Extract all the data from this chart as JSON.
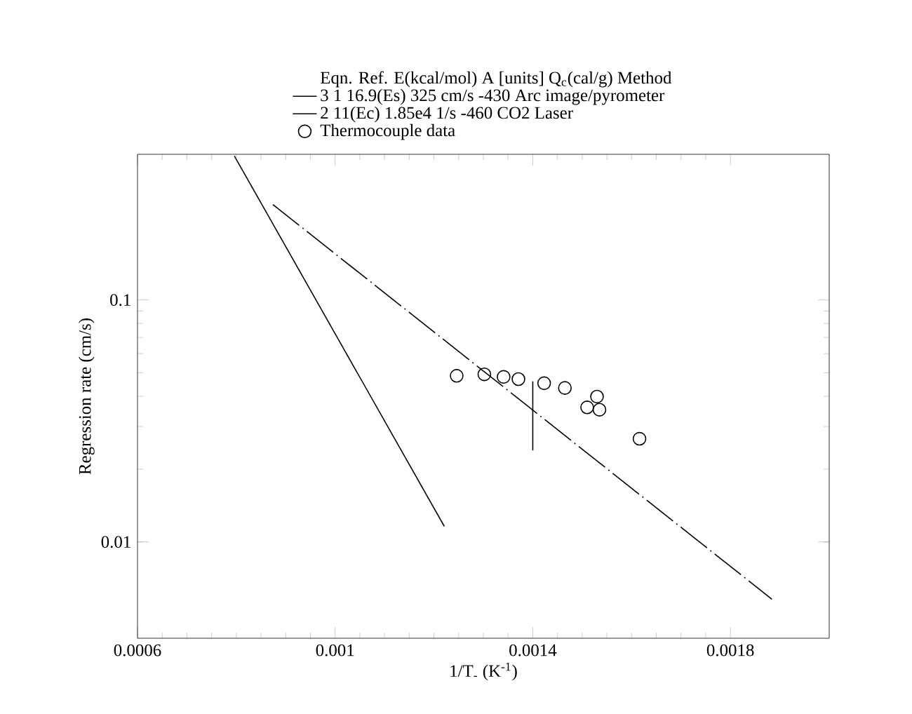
{
  "chart_data": {
    "type": "line",
    "xlabel": "1/T$_{-}$ (K$^{-1}$)",
    "ylabel": "Regression rate (cm/s)",
    "legend_title": "Eqn. Ref. E(kcal/mol)    A    [units]  Q$_{c}$(cal/g)    Method",
    "xlim": [
      0.0006,
      0.002
    ],
    "ylim": [
      0.004,
      0.4
    ],
    "xticks": [
      0.0006,
      0.001,
      0.0014,
      0.0018
    ],
    "yticks": [
      0.01,
      0.1
    ],
    "log": "y",
    "legend": "top",
    "series": [
      {
        "name": "3    1    16.9(Es)    325   cm/s    -430   Arc image/pyrometer",
        "color": "#000000",
        "line_style": "solid",
        "marker": "none",
        "x": [
          0.000796,
          0.001221
        ],
        "values": [
          0.394,
          0.0116
        ]
      },
      {
        "name": "2          11(Ec)   1.85e4   1/s    -460     CO2 Laser",
        "color": "#000000",
        "line_style": "dashed",
        "marker": "none",
        "x": [
          0.000874,
          0.001884
        ],
        "values": [
          0.248,
          0.0058
        ]
      },
      {
        "name": "Thermocouple data",
        "type": "scatter",
        "color": "#000000",
        "marker": "circle",
        "x": [
          0.001246,
          0.001302,
          0.001341,
          0.001371,
          0.001423,
          0.001465,
          0.00153,
          0.00151,
          0.001535,
          0.001616
        ],
        "values": [
          0.0486,
          0.0493,
          0.0481,
          0.0471,
          0.0453,
          0.0433,
          0.0399,
          0.036,
          0.0352,
          0.0267
        ]
      },
      {
        "color": "#000000",
        "marker": "none",
        "x": [
          0.0014,
          0.0014
        ],
        "values": [
          0.0461,
          0.0239
        ]
      }
    ]
  }
}
